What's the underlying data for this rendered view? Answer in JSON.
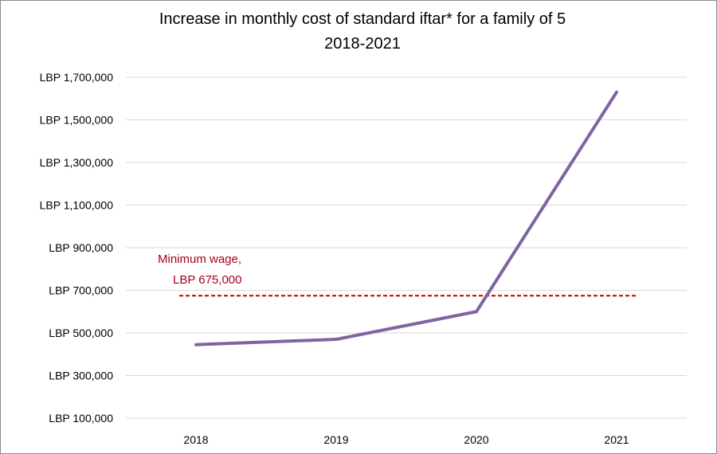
{
  "chart_data": {
    "type": "line",
    "title": "Increase in monthly cost of standard iftar* for a family of 5",
    "subtitle": "2018-2021",
    "xlabel": "",
    "ylabel": "",
    "categories": [
      "2018",
      "2019",
      "2020",
      "2021"
    ],
    "series": [
      {
        "values": [
          445000,
          470000,
          600000,
          1630000
        ],
        "color": "#8064a2"
      }
    ],
    "yticks": [
      100000,
      300000,
      500000,
      700000,
      900000,
      1100000,
      1300000,
      1500000,
      1700000
    ],
    "ytick_labels": [
      "LBP 100,000",
      "LBP 300,000",
      "LBP 500,000",
      "LBP 700,000",
      "LBP 900,000",
      "LBP 1,100,000",
      "LBP 1,300,000",
      "LBP 1,500,000",
      "LBP 1,700,000"
    ],
    "ylim": [
      100000,
      1700000
    ],
    "grid": true,
    "reference_line": {
      "value": 675000,
      "label_line1": "Minimum wage,",
      "label_line2": "LBP 675,000",
      "color": "#c00000",
      "style": "dashed"
    }
  }
}
